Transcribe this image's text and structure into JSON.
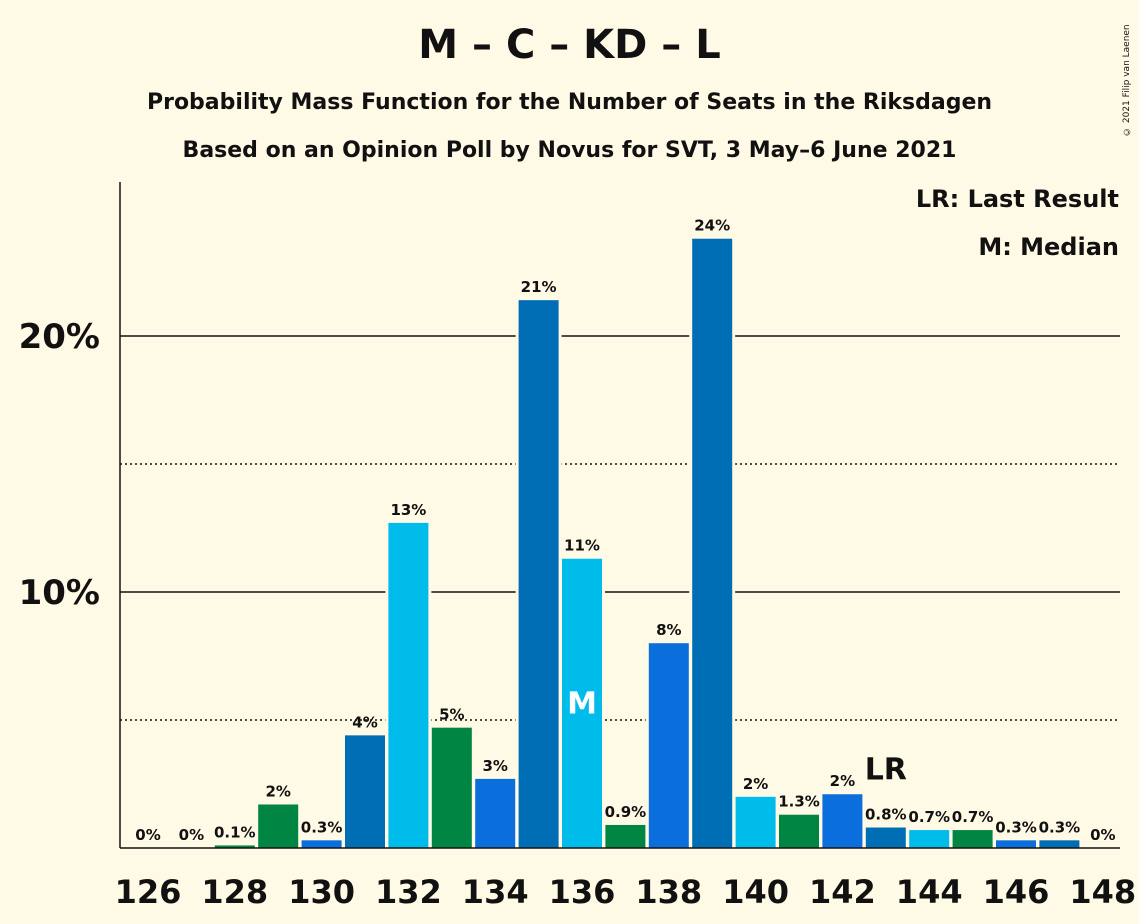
{
  "title": "M – C – KD – L",
  "subtitle_1": "Probability Mass Function for the Number of Seats in the Riksdagen",
  "subtitle_2": "Based on an Opinion Poll by Novus for SVT, 3 May–6 June 2021",
  "copyright": "© 2021 Filip van Laenen",
  "legend": {
    "last_result": "LR: Last Result",
    "median": "M: Median"
  },
  "colors": {
    "background": "#FFFAE6",
    "blue_dark": "#006EB5",
    "blue_mid": "#0A6EDC",
    "blue_light": "#00BCEB",
    "green": "#008542"
  },
  "chart_data": {
    "type": "bar",
    "x": [
      126,
      127,
      128,
      129,
      130,
      131,
      132,
      133,
      134,
      135,
      136,
      137,
      138,
      139,
      140,
      141,
      142,
      143,
      144,
      145,
      146,
      147,
      148
    ],
    "values": [
      0.0,
      0.0,
      0.1,
      1.7,
      0.3,
      4.4,
      12.7,
      4.7,
      2.7,
      21.4,
      11.3,
      0.9,
      8.0,
      23.8,
      2.0,
      1.3,
      2.1,
      0.8,
      0.7,
      0.7,
      0.3,
      0.3,
      0.0
    ],
    "value_labels": [
      "0%",
      "0%",
      "0.1%",
      "2%",
      "0.3%",
      "4%",
      "13%",
      "5%",
      "3%",
      "21%",
      "11%",
      "0.9%",
      "8%",
      "24%",
      "2%",
      "1.3%",
      "2%",
      "0.8%",
      "0.7%",
      "0.7%",
      "0.3%",
      "0.3%",
      "0%"
    ],
    "bar_colors": [
      "#006EB5",
      "#00BCEB",
      "#008542",
      "#008542",
      "#0A6EDC",
      "#006EB5",
      "#00BCEB",
      "#008542",
      "#0A6EDC",
      "#006EB5",
      "#00BCEB",
      "#008542",
      "#0A6EDC",
      "#006EB5",
      "#00BCEB",
      "#008542",
      "#0A6EDC",
      "#006EB5",
      "#00BCEB",
      "#008542",
      "#0A6EDC",
      "#006EB5",
      "#00BCEB"
    ],
    "x_tick_labels": [
      "126",
      "128",
      "130",
      "132",
      "134",
      "136",
      "138",
      "140",
      "142",
      "144",
      "146",
      "148"
    ],
    "y_tick_labels": [
      "10%",
      "20%"
    ],
    "y_ticks": [
      10,
      20
    ],
    "y_minor_gridlines": [
      5,
      15
    ],
    "ylim": [
      0,
      26
    ],
    "median_seat": 136,
    "median_label": "M",
    "last_result_seat": 143,
    "last_result_label": "LR"
  }
}
